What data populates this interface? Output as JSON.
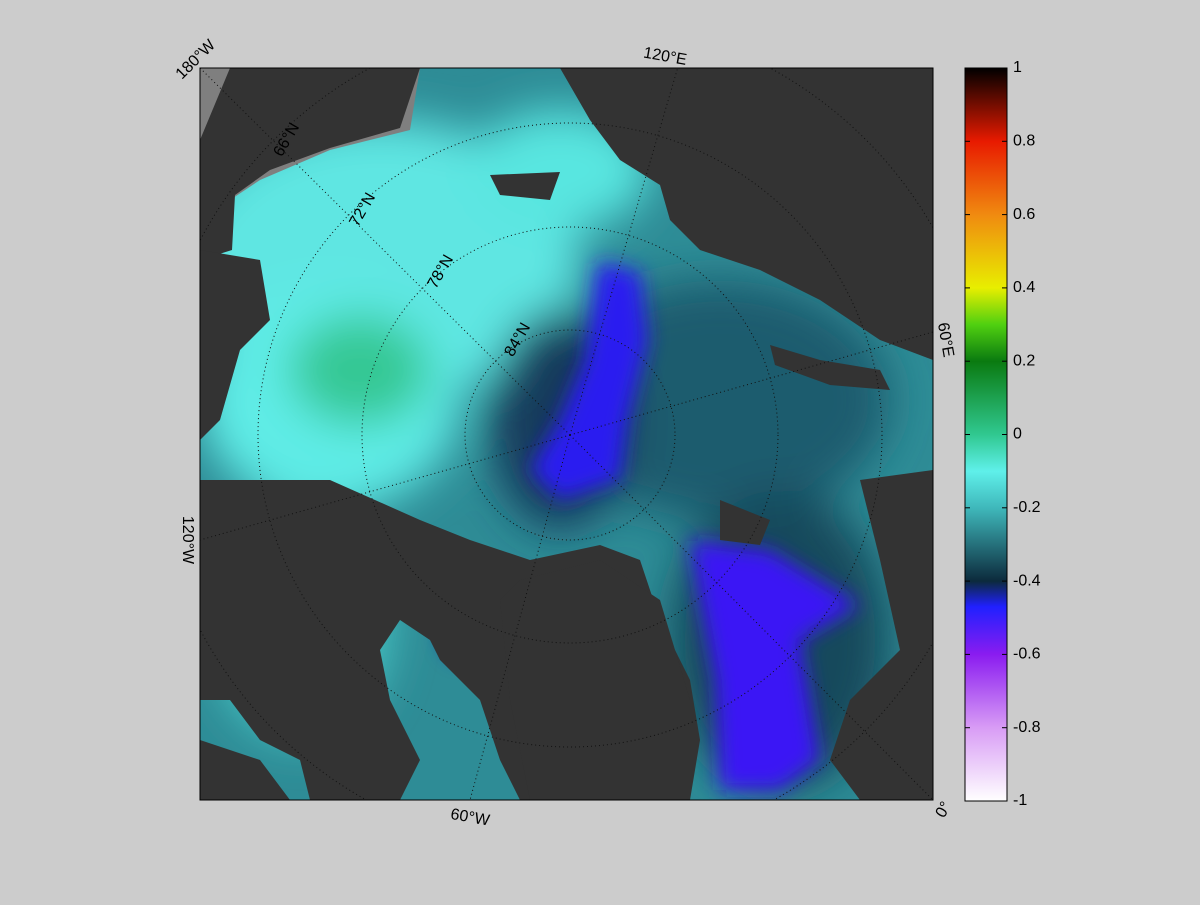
{
  "map": {
    "lon_labels": [
      "180°W",
      "120°E",
      "60°E",
      "0°",
      "60°W",
      "120°W"
    ],
    "lat_labels": [
      "66°N",
      "72°N",
      "78°N",
      "84°N"
    ]
  },
  "colorbar": {
    "lim": [
      -1,
      1
    ],
    "ticks": [
      1,
      0.8,
      0.6,
      0.4,
      0.2,
      0,
      -0.2,
      -0.4,
      -0.6,
      -0.8,
      -1
    ],
    "colormap": [
      {
        "value": -1,
        "color": "#ffffff"
      },
      {
        "value": -0.8,
        "color": "#d89cf5"
      },
      {
        "value": -0.6,
        "color": "#8a1cf0"
      },
      {
        "value": -0.47,
        "color": "#2020ff"
      },
      {
        "value": -0.4,
        "color": "#0c2a3c"
      },
      {
        "value": -0.2,
        "color": "#3fb8bb"
      },
      {
        "value": -0.1,
        "color": "#5ff0ea"
      },
      {
        "value": 0,
        "color": "#30c890"
      },
      {
        "value": 0.2,
        "color": "#0a7a10"
      },
      {
        "value": 0.3,
        "color": "#50d010"
      },
      {
        "value": 0.4,
        "color": "#e8ee00"
      },
      {
        "value": 0.6,
        "color": "#f08a10"
      },
      {
        "value": 0.8,
        "color": "#e81a00"
      },
      {
        "value": 1,
        "color": "#000000"
      }
    ]
  }
}
